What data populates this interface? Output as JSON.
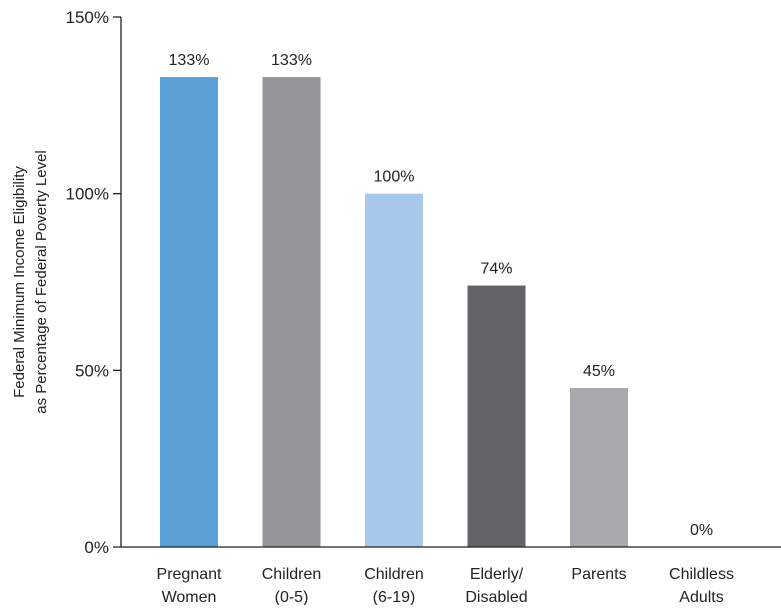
{
  "chart_data": {
    "type": "bar",
    "title": "",
    "xlabel": "",
    "ylabel_lines": [
      "Federal Minimum Income Eligibility",
      "as Percentage of Federal Poverty Level"
    ],
    "ylim": [
      0,
      150
    ],
    "yticks": [
      0,
      50,
      100,
      150
    ],
    "ytick_labels": [
      "0%",
      "50%",
      "100%",
      "150%"
    ],
    "categories": [
      [
        "Pregnant",
        "Women"
      ],
      [
        "Children",
        "(0-5)"
      ],
      [
        "Children",
        "(6-19)"
      ],
      [
        "Elderly/",
        "Disabled"
      ],
      [
        "Parents"
      ],
      [
        "Childless",
        "Adults"
      ]
    ],
    "values": [
      133,
      133,
      100,
      74,
      45,
      0
    ],
    "value_labels": [
      "133%",
      "133%",
      "100%",
      "74%",
      "45%",
      "0%"
    ],
    "colors": [
      "#5aa0d6",
      "#939598",
      "#a7c8e8",
      "#636466",
      "#a7a9ac",
      "#d0d0d0"
    ],
    "grid": false,
    "legend": "none"
  }
}
